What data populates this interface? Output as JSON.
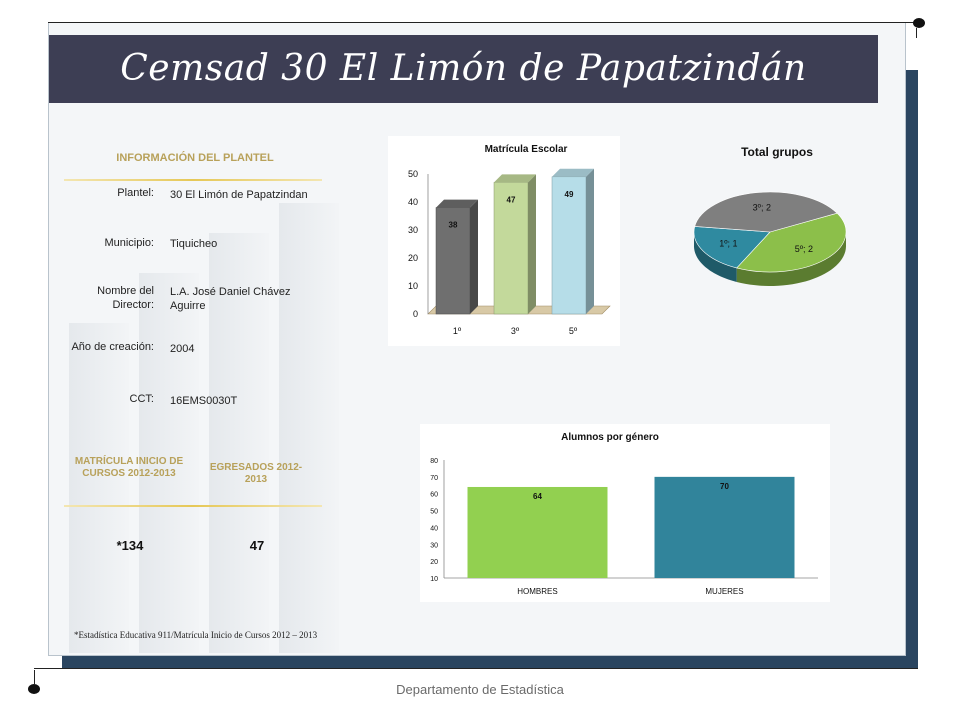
{
  "title": "Cemsad 30 El Limón de Papatzindán",
  "info": {
    "heading": "INFORMACIÓN DEL PLANTEL",
    "rows": [
      {
        "label": "Plantel:",
        "value": "30 El Limón de Papatzindan"
      },
      {
        "label": "Municipio:",
        "value": "Tiquicheo"
      },
      {
        "label": "Nombre del Director:",
        "value": "L.A. José Daniel Chávez Aguirre"
      },
      {
        "label": "Año de creación:",
        "value": "2004"
      },
      {
        "label": "CCT:",
        "value": "16EMS0030T"
      }
    ]
  },
  "stats": {
    "matricula_heading": "MATRÍCULA INICIO DE CURSOS 2012-2013",
    "egresados_heading": "EGRESADOS 2012-2013",
    "matricula_value": "*134",
    "egresados_value": "47"
  },
  "footnote": "*Estadística Educativa 911/Matrícula Inicio de Cursos 2012 – 2013",
  "footer": "Departamento de Estadística",
  "chart_data": [
    {
      "type": "bar",
      "title": "Matrícula Escolar",
      "categories": [
        "1º",
        "3º",
        "5º"
      ],
      "values": [
        38,
        47,
        49
      ],
      "ylim": [
        0,
        50
      ],
      "yticks": [
        0,
        10,
        20,
        30,
        40,
        50
      ],
      "colors": [
        "#6f6f6f",
        "#c3d99b",
        "#b6dde8"
      ]
    },
    {
      "type": "pie",
      "title": "Total grupos",
      "slices": [
        {
          "label": "5º; 2",
          "value": 2,
          "color": "#8cbf4a"
        },
        {
          "label": "1º; 1",
          "value": 1,
          "color": "#2f8aa0"
        },
        {
          "label": "3º; 2",
          "value": 2,
          "color": "#7f7f7f"
        }
      ]
    },
    {
      "type": "bar",
      "title": "Alumnos por género",
      "categories": [
        "HOMBRES",
        "MUJERES"
      ],
      "values": [
        64,
        70
      ],
      "ylim": [
        10,
        80
      ],
      "yticks": [
        10,
        20,
        30,
        40,
        50,
        60,
        70,
        80
      ],
      "colors": [
        "#92d050",
        "#31849b"
      ]
    }
  ]
}
